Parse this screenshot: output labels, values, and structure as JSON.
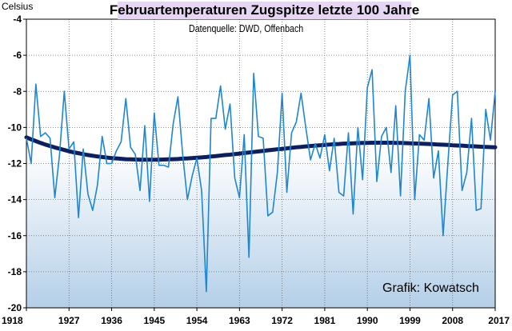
{
  "chart_data": {
    "type": "line",
    "title": "Februartemperaturen Zugspitze letzte 100 Jahre",
    "subtitle": "Datenquelle: DWD, Offenbach",
    "ylabel": "Celsius",
    "xlabel": "",
    "credit": "Grafik: Kowatsch",
    "x_tick_labels": [
      "1918",
      "1927",
      "1936",
      "1945",
      "1954",
      "1963",
      "1972",
      "1981",
      "1990",
      "1999",
      "2008",
      "2017"
    ],
    "y_tick_labels": [
      "-4",
      "-6",
      "-8",
      "-10",
      "-12",
      "-14",
      "-16",
      "-18",
      "-20"
    ],
    "xlim": [
      1918,
      2017
    ],
    "ylim": [
      -20,
      -4
    ],
    "grid": true,
    "legend": "none",
    "x": [
      1918,
      1919,
      1920,
      1921,
      1922,
      1923,
      1924,
      1925,
      1926,
      1927,
      1928,
      1929,
      1930,
      1931,
      1932,
      1933,
      1934,
      1935,
      1936,
      1937,
      1938,
      1939,
      1940,
      1941,
      1942,
      1943,
      1944,
      1945,
      1946,
      1947,
      1948,
      1949,
      1950,
      1951,
      1952,
      1953,
      1954,
      1955,
      1956,
      1957,
      1958,
      1959,
      1960,
      1961,
      1962,
      1963,
      1964,
      1965,
      1966,
      1967,
      1968,
      1969,
      1970,
      1971,
      1972,
      1973,
      1974,
      1975,
      1976,
      1977,
      1978,
      1979,
      1980,
      1981,
      1982,
      1983,
      1984,
      1985,
      1986,
      1987,
      1988,
      1989,
      1990,
      1991,
      1992,
      1993,
      1994,
      1995,
      1996,
      1997,
      1998,
      1999,
      2000,
      2001,
      2002,
      2003,
      2004,
      2005,
      2006,
      2007,
      2008,
      2009,
      2010,
      2011,
      2012,
      2013,
      2014,
      2015,
      2016,
      2017
    ],
    "series": [
      {
        "values": [
          -10.6,
          -12.0,
          -7.6,
          -10.5,
          -10.3,
          -10.6,
          -13.9,
          -11.5,
          -8.0,
          -11.2,
          -10.8,
          -15.0,
          -11.2,
          -13.7,
          -14.6,
          -13.2,
          -10.5,
          -12.0,
          -12.0,
          -11.3,
          -10.8,
          -8.4,
          -11.1,
          -11.5,
          -13.5,
          -9.9,
          -14.1,
          -9.2,
          -12.1,
          -12.1,
          -12.2,
          -9.8,
          -8.3,
          -11.5,
          -14.0,
          -12.7,
          -11.7,
          -13.5,
          -19.1,
          -9.5,
          -9.5,
          -7.7,
          -10.1,
          -8.7,
          -12.8,
          -13.9,
          -10.4,
          -17.2,
          -7.0,
          -10.5,
          -10.6,
          -14.9,
          -14.7,
          -12.5,
          -8.1,
          -13.6,
          -10.3,
          -9.7,
          -8.1,
          -10.0,
          -11.8,
          -10.9,
          -11.7,
          -10.4,
          -12.4,
          -10.6,
          -13.6,
          -13.8,
          -10.3,
          -14.8,
          -10.0,
          -12.9,
          -7.8,
          -6.8,
          -13.0,
          -10.5,
          -10.0,
          -12.5,
          -8.8,
          -13.8,
          -8.0,
          -6.0,
          -14.0,
          -10.4,
          -10.7,
          -8.4,
          -12.8,
          -11.3,
          -16.0,
          -12.0,
          -8.2,
          -8.0,
          -13.5,
          -12.5,
          -9.5,
          -14.6,
          -14.5,
          -9.0,
          -10.7,
          -8.0
        ]
      },
      {
        "values": [
          -10.55,
          -10.66,
          -10.76,
          -10.86,
          -10.95,
          -11.03,
          -11.11,
          -11.18,
          -11.25,
          -11.32,
          -11.38,
          -11.43,
          -11.48,
          -11.53,
          -11.57,
          -11.61,
          -11.64,
          -11.67,
          -11.7,
          -11.72,
          -11.74,
          -11.76,
          -11.77,
          -11.78,
          -11.79,
          -11.79,
          -11.79,
          -11.79,
          -11.79,
          -11.78,
          -11.77,
          -11.76,
          -11.75,
          -11.73,
          -11.72,
          -11.7,
          -11.68,
          -11.66,
          -11.64,
          -11.61,
          -11.59,
          -11.56,
          -11.53,
          -11.51,
          -11.48,
          -11.45,
          -11.42,
          -11.39,
          -11.36,
          -11.33,
          -11.3,
          -11.27,
          -11.24,
          -11.21,
          -11.19,
          -11.16,
          -11.13,
          -11.1,
          -11.08,
          -11.05,
          -11.03,
          -11.01,
          -10.99,
          -10.97,
          -10.95,
          -10.93,
          -10.92,
          -10.9,
          -10.89,
          -10.88,
          -10.87,
          -10.86,
          -10.86,
          -10.85,
          -10.85,
          -10.85,
          -10.85,
          -10.85,
          -10.86,
          -10.86,
          -10.87,
          -10.88,
          -10.89,
          -10.9,
          -10.91,
          -10.92,
          -10.93,
          -10.95,
          -10.96,
          -10.97,
          -10.99,
          -11.0,
          -11.01,
          -11.03,
          -11.04,
          -11.05,
          -11.07,
          -11.08,
          -11.09,
          -11.1
        ]
      }
    ]
  }
}
